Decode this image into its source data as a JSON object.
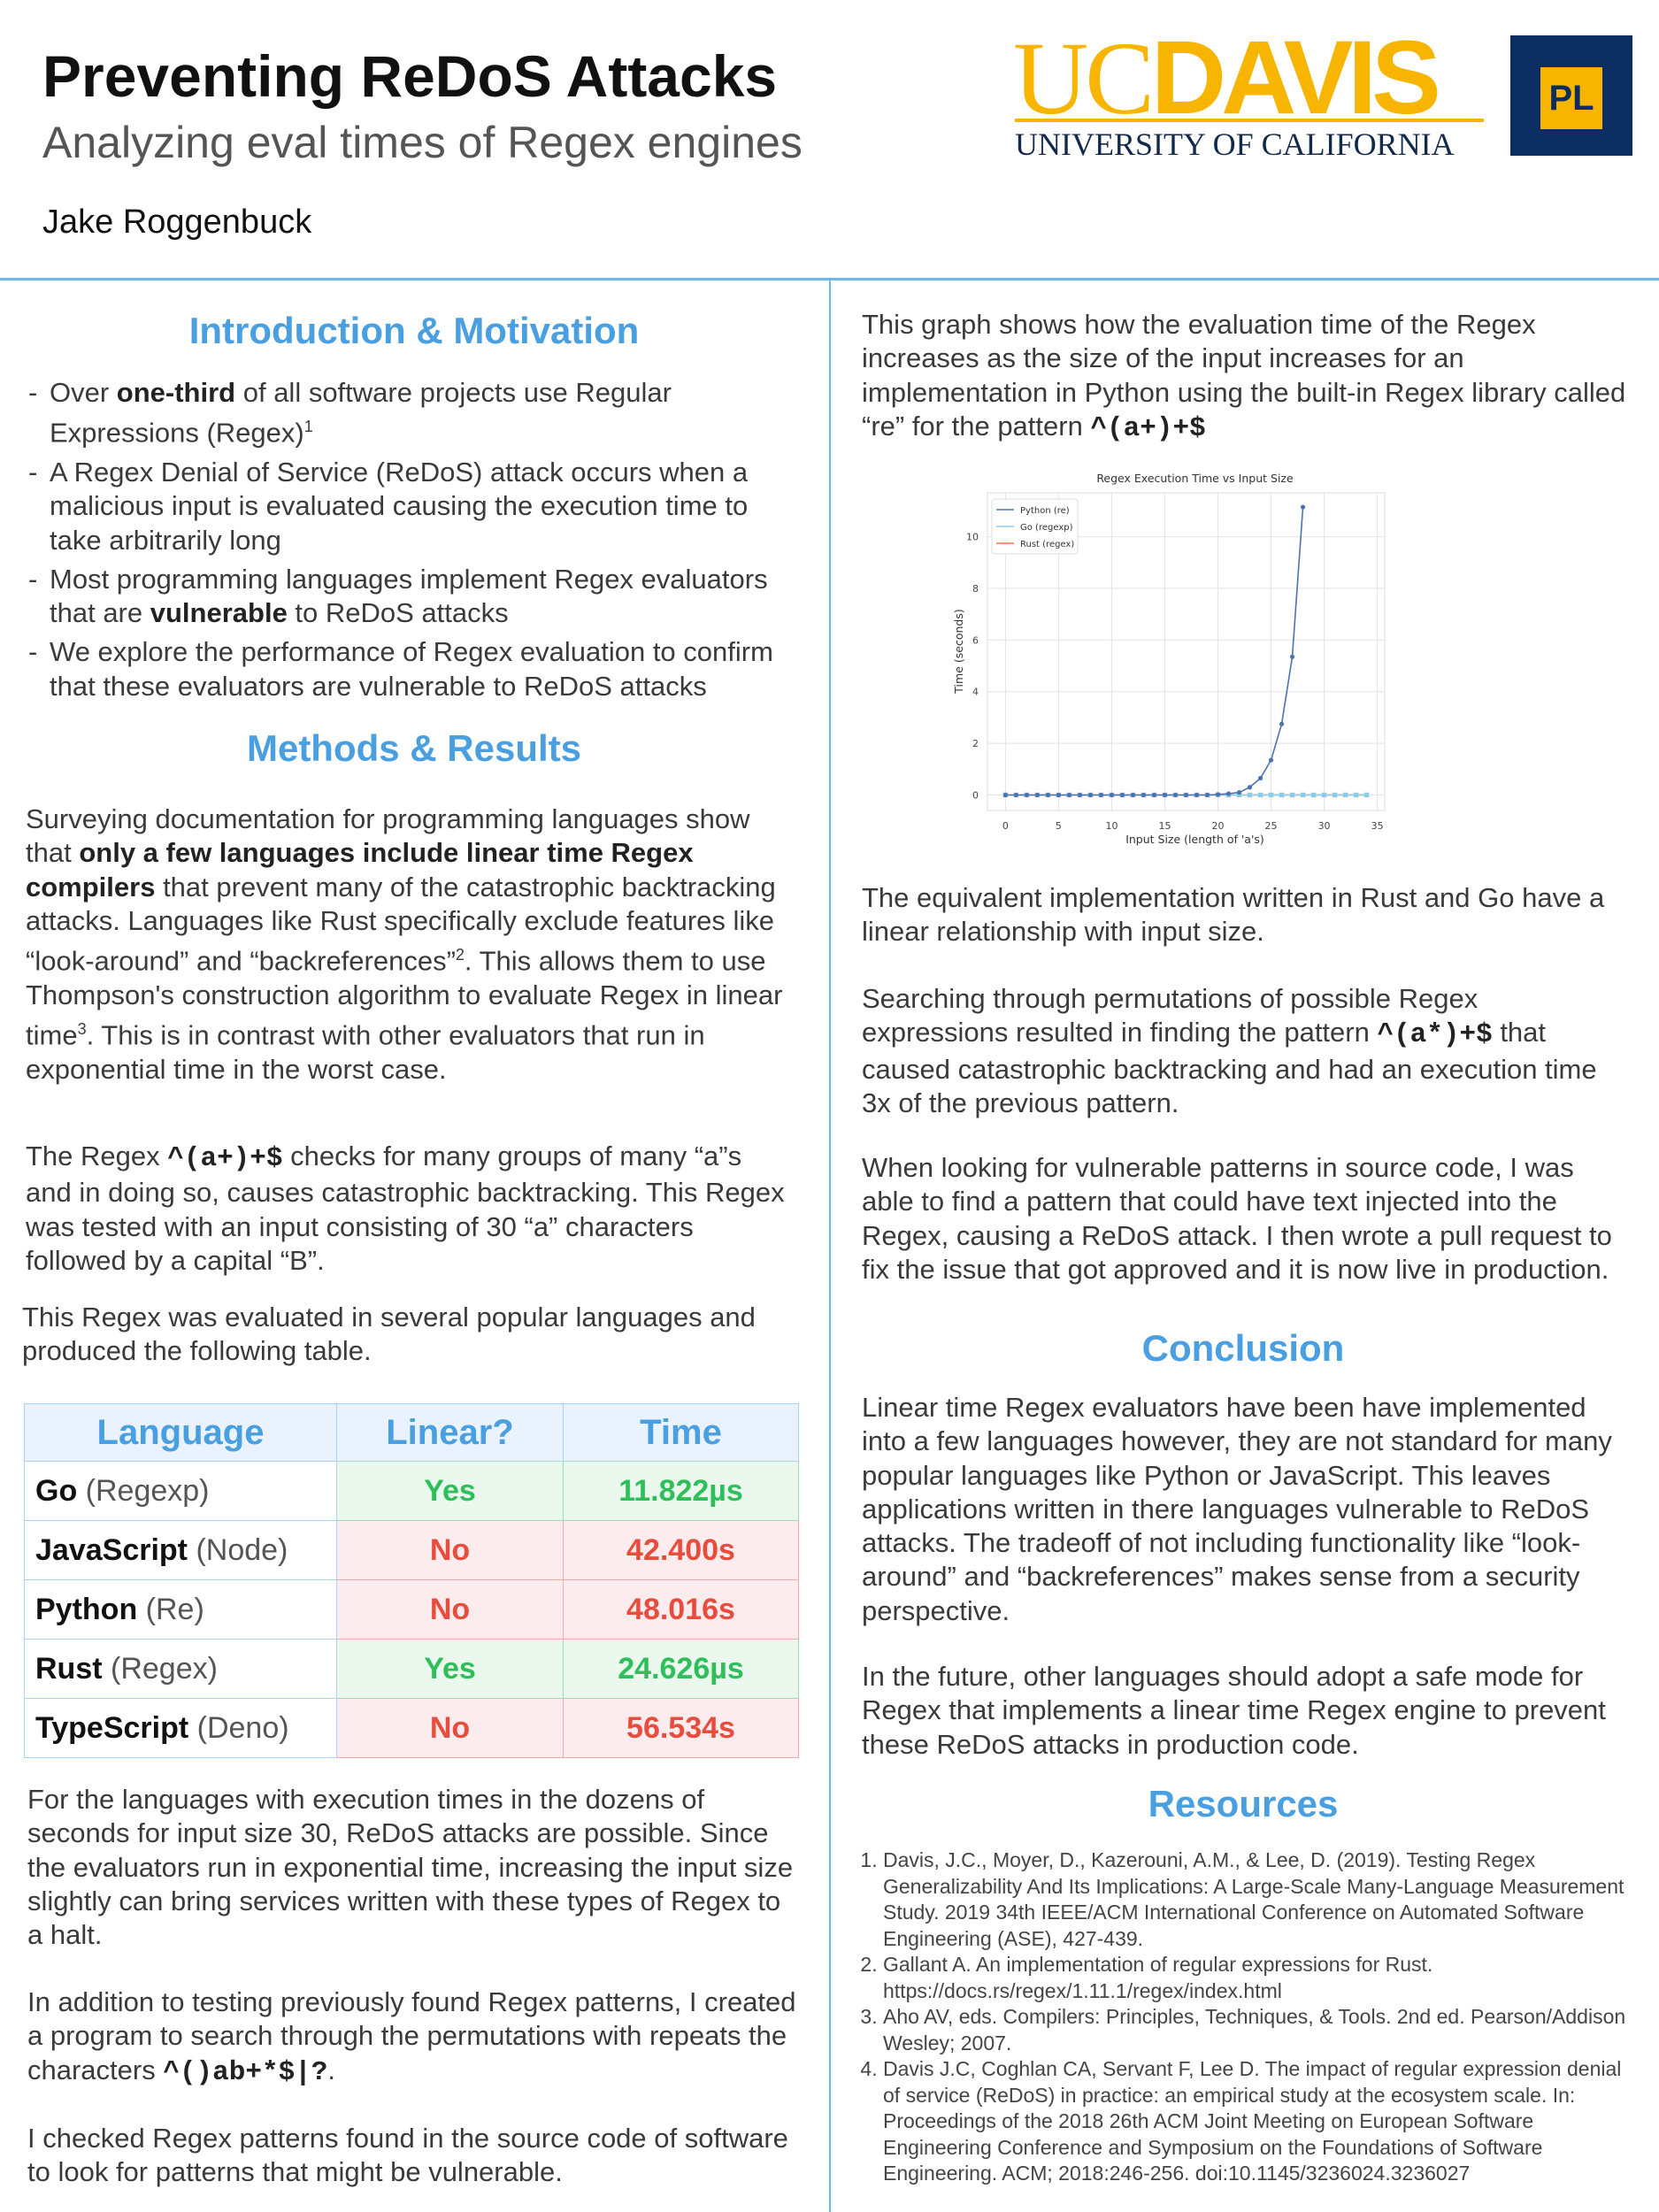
{
  "header": {
    "title": "Preventing ReDoS Attacks",
    "subtitle": "Analyzing eval times of Regex engines",
    "author": "Jake Roggenbuck",
    "logo_text": "UCDAVIS UNIVERSITY OF CALIFORNIA",
    "logo_badge": "PL"
  },
  "colors": {
    "accent": "#4a9fe0",
    "uc_gold": "#f7b500",
    "uc_navy": "#0c2d62",
    "yes": "#2fbf5a",
    "no": "#e74c3c"
  },
  "intro": {
    "heading": "Introduction & Motivation",
    "bullets": [
      [
        {
          "t": "Over "
        },
        {
          "t": "one-third",
          "s": "b"
        },
        {
          "t": " of all software projects use Regular Expressions (Regex)"
        },
        {
          "t": "1",
          "s": "sup"
        }
      ],
      [
        {
          "t": "A Regex Denial of Service (ReDoS) attack occurs when a malicious input is evaluated causing the execution time to take arbitrarily long"
        }
      ],
      [
        {
          "t": "Most programming languages implement Regex evaluators that are "
        },
        {
          "t": "vulnerable",
          "s": "b"
        },
        {
          "t": " to ReDoS attacks"
        }
      ],
      [
        {
          "t": "We explore the performance of Regex evaluation to confirm that these evaluators are vulnerable to ReDoS attacks"
        }
      ]
    ]
  },
  "methods": {
    "heading": "Methods & Results",
    "p1": [
      {
        "t": "Surveying documentation for programming languages show that "
      },
      {
        "t": "only a few languages include linear time Regex compilers",
        "s": "b"
      },
      {
        "t": " that prevent many of the catastrophic backtracking attacks. Languages like Rust specifically exclude features like “look-around” and “backreferences”"
      },
      {
        "t": "2",
        "s": "sup"
      },
      {
        "t": ". This allows them to use Thompson's construction algorithm to evaluate Regex in linear time"
      },
      {
        "t": "3",
        "s": "sup"
      },
      {
        "t": ". This is in contrast with other evaluators that run in exponential time in the worst case."
      }
    ],
    "p2": [
      {
        "t": "The Regex "
      },
      {
        "t": "^(a+)+$",
        "s": "code"
      },
      {
        "t": " checks for many groups of many “a”s and in doing so, causes catastrophic backtracking. This Regex was tested with an input consisting of 30 “a” characters followed by a capital “B”."
      }
    ],
    "p3": [
      {
        "t": "This Regex was evaluated in several popular languages and produced the following table."
      }
    ],
    "table": {
      "headers": [
        "Language",
        "Linear?",
        "Time"
      ],
      "rows": [
        {
          "name": "Go",
          "engine": "(Regexp)",
          "linear": "Yes",
          "time": "11.822µs"
        },
        {
          "name": "JavaScript",
          "engine": "(Node)",
          "linear": "No",
          "time": "42.400s"
        },
        {
          "name": "Python",
          "engine": "(Re)",
          "linear": "No",
          "time": "48.016s"
        },
        {
          "name": "Rust",
          "engine": "(Regex)",
          "linear": "Yes",
          "time": "24.626µs"
        },
        {
          "name": "TypeScript",
          "engine": "(Deno)",
          "linear": "No",
          "time": "56.534s"
        }
      ]
    },
    "p4": [
      {
        "t": "For the languages with execution times in the dozens of seconds for input size 30, ReDoS attacks are possible. Since the evaluators run in exponential time, increasing the input size slightly can bring services written with these types of Regex to a halt."
      }
    ],
    "p5": [
      {
        "t": "In addition to testing previously found Regex patterns, I created a program to search through the permutations with repeats the characters "
      },
      {
        "t": "^()ab+*$|?",
        "s": "code"
      },
      {
        "t": "."
      }
    ],
    "p6": [
      {
        "t": "I checked Regex patterns found in the source code of software to look for patterns that might be vulnerable."
      }
    ]
  },
  "right": {
    "p1": [
      {
        "t": "This graph shows how the evaluation time of the Regex increases as the size of the input increases for an implementation in Python using the built-in Regex library called “re” for the pattern "
      },
      {
        "t": "^(a+)+$",
        "s": "code"
      }
    ],
    "p2": [
      {
        "t": "The equivalent implementation written in Rust and Go have a linear relationship with input size."
      }
    ],
    "p3": [
      {
        "t": "Searching through permutations of possible Regex expressions resulted in finding the pattern "
      },
      {
        "t": "^(a*)+$",
        "s": "code"
      },
      {
        "t": " that caused catastrophic backtracking and had an execution time 3x of the previous pattern."
      }
    ],
    "p4": [
      {
        "t": "When looking for vulnerable patterns in source code, I was able to find a pattern that could have text injected into the Regex, causing a ReDoS attack. I then wrote a pull request to fix the issue that got approved and it is now live in production."
      }
    ]
  },
  "conclusion": {
    "heading": "Conclusion",
    "p1": [
      {
        "t": "Linear time Regex evaluators have been have implemented into a few languages however, they are not standard for many popular languages like Python or JavaScript. This leaves applications written in there languages vulnerable to ReDoS attacks. The tradeoff of not including functionality like “look-around” and “backreferences” makes sense from a security perspective."
      }
    ],
    "p2": [
      {
        "t": "In the future, other languages should adopt a safe mode for Regex that implements a linear time Regex engine to prevent these ReDoS attacks in production code."
      }
    ]
  },
  "resources": {
    "heading": "Resources",
    "items": [
      "Davis, J.C., Moyer, D., Kazerouni, A.M., & Lee, D. (2019). Testing Regex Generalizability And Its Implications: A Large-Scale Many-Language Measurement Study. 2019 34th IEEE/ACM International Conference on Automated Software Engineering (ASE), 427-439.",
      "Gallant A. An implementation of regular expressions for Rust. https://docs.rs/regex/1.11.1/regex/index.html",
      "Aho AV, eds. Compilers: Principles, Techniques, & Tools. 2nd ed. Pearson/Addison Wesley; 2007.",
      "Davis J.C, Coghlan CA, Servant F, Lee D. The impact of regular expression denial of service (ReDoS) in practice: an empirical study at the ecosystem scale. In: Proceedings of the 2018 26th ACM Joint Meeting on European Software Engineering Conference and Symposium on the Foundations of Software Engineering. ACM; 2018:246-256. doi:10.1145/3236024.3236027"
    ]
  },
  "chart_data": {
    "type": "line",
    "title": "Regex Execution Time vs Input Size",
    "xlabel": "Input Size (length of 'a's)",
    "ylabel": "Time (seconds)",
    "xlim": [
      -1.7,
      35.7
    ],
    "ylim": [
      -0.6,
      11.7
    ],
    "xticks": [
      0,
      5,
      10,
      15,
      20,
      25,
      30,
      35
    ],
    "yticks": [
      0,
      2,
      4,
      6,
      8,
      10
    ],
    "grid": true,
    "legend": "top-left",
    "series": [
      {
        "name": "Python (re)",
        "color": "#4c72b0",
        "marker": "circle",
        "x": [
          0,
          1,
          2,
          3,
          4,
          5,
          6,
          7,
          8,
          9,
          10,
          11,
          12,
          13,
          14,
          15,
          16,
          17,
          18,
          19,
          20,
          21,
          22,
          23,
          24,
          25,
          26,
          27,
          28
        ],
        "y": [
          0,
          0,
          0,
          0,
          0,
          0,
          0,
          0,
          0,
          0,
          0,
          0,
          0,
          0,
          0,
          0,
          0,
          0,
          0,
          0,
          0.02,
          0.05,
          0.1,
          0.3,
          0.65,
          1.35,
          2.75,
          5.35,
          11.15
        ]
      },
      {
        "name": "Go (regexp)",
        "color": "#87ceeb",
        "marker": "square",
        "x": [
          0,
          1,
          2,
          3,
          4,
          5,
          6,
          7,
          8,
          9,
          10,
          11,
          12,
          13,
          14,
          15,
          16,
          17,
          18,
          19,
          20,
          21,
          22,
          23,
          24,
          25,
          26,
          27,
          28,
          29,
          30,
          31,
          32,
          33,
          34
        ],
        "y": [
          0,
          0,
          0,
          0,
          0,
          0,
          0,
          0,
          0,
          0,
          0,
          0,
          0,
          0,
          0,
          0,
          0,
          0,
          0,
          0,
          0,
          0,
          0,
          0,
          0,
          0,
          0,
          0,
          0,
          0,
          0,
          0,
          0,
          0,
          0
        ]
      },
      {
        "name": "Rust (regex)",
        "color": "#ff7043",
        "marker": "x",
        "x": [
          0,
          1,
          2,
          3,
          4,
          5,
          6,
          7,
          8,
          9,
          10,
          11,
          12,
          13,
          14,
          15,
          16,
          17,
          18,
          19,
          20,
          21,
          22,
          23,
          24,
          25,
          26,
          27,
          28,
          29,
          30,
          31,
          32,
          33,
          34
        ],
        "y": [
          0,
          0,
          0,
          0,
          0,
          0,
          0,
          0,
          0,
          0,
          0,
          0,
          0,
          0,
          0,
          0,
          0,
          0,
          0,
          0,
          0,
          0,
          0,
          0,
          0,
          0,
          0,
          0,
          0,
          0,
          0,
          0,
          0,
          0,
          0
        ]
      }
    ]
  }
}
